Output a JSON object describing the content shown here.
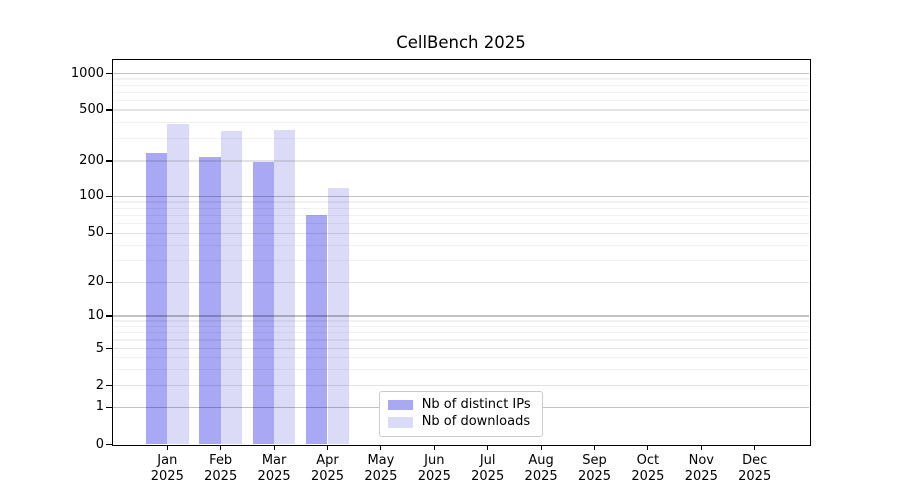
{
  "figure": {
    "title": "CellBench 2025",
    "background_color": "#ffffff"
  },
  "legend": {
    "items": [
      {
        "label": "Nb of distinct IPs",
        "color": "#a8a8f4"
      },
      {
        "label": "Nb of downloads",
        "color": "#dbdbf8"
      }
    ]
  },
  "axes": {
    "y_tick_labels": [
      "0",
      "1",
      "2",
      "5",
      "10",
      "20",
      "50",
      "100",
      "200",
      "500",
      "1000"
    ],
    "x_tick_labels": [
      {
        "month": "Jan",
        "year": "2025"
      },
      {
        "month": "Feb",
        "year": "2025"
      },
      {
        "month": "Mar",
        "year": "2025"
      },
      {
        "month": "Apr",
        "year": "2025"
      },
      {
        "month": "May",
        "year": "2025"
      },
      {
        "month": "Jun",
        "year": "2025"
      },
      {
        "month": "Jul",
        "year": "2025"
      },
      {
        "month": "Aug",
        "year": "2025"
      },
      {
        "month": "Sep",
        "year": "2025"
      },
      {
        "month": "Oct",
        "year": "2025"
      },
      {
        "month": "Nov",
        "year": "2025"
      },
      {
        "month": "Dec",
        "year": "2025"
      }
    ]
  },
  "chart_data": {
    "type": "bar",
    "title": "CellBench 2025",
    "categories": [
      "Jan 2025",
      "Feb 2025",
      "Mar 2025",
      "Apr 2025",
      "May 2025",
      "Jun 2025",
      "Jul 2025",
      "Aug 2025",
      "Sep 2025",
      "Oct 2025",
      "Nov 2025",
      "Dec 2025"
    ],
    "series": [
      {
        "name": "Nb of distinct IPs",
        "color": "#a8a8f4",
        "values": [
          230,
          215,
          196,
          70,
          null,
          null,
          null,
          null,
          null,
          null,
          null,
          null
        ]
      },
      {
        "name": "Nb of downloads",
        "color": "#dbdbf8",
        "values": [
          392,
          345,
          352,
          118,
          null,
          null,
          null,
          null,
          null,
          null,
          null,
          null
        ]
      }
    ],
    "xlabel": "",
    "ylabel": "",
    "yscale": "symlog",
    "y_ticks": [
      0,
      1,
      2,
      5,
      10,
      20,
      50,
      100,
      200,
      500,
      1000
    ],
    "y_minor_ticks": [
      3,
      4,
      6,
      7,
      8,
      9,
      30,
      40,
      60,
      70,
      80,
      90,
      300,
      400,
      600,
      700,
      800,
      900
    ],
    "ylim": [
      0,
      1300
    ],
    "grid": true,
    "legend_position": "lower center"
  }
}
